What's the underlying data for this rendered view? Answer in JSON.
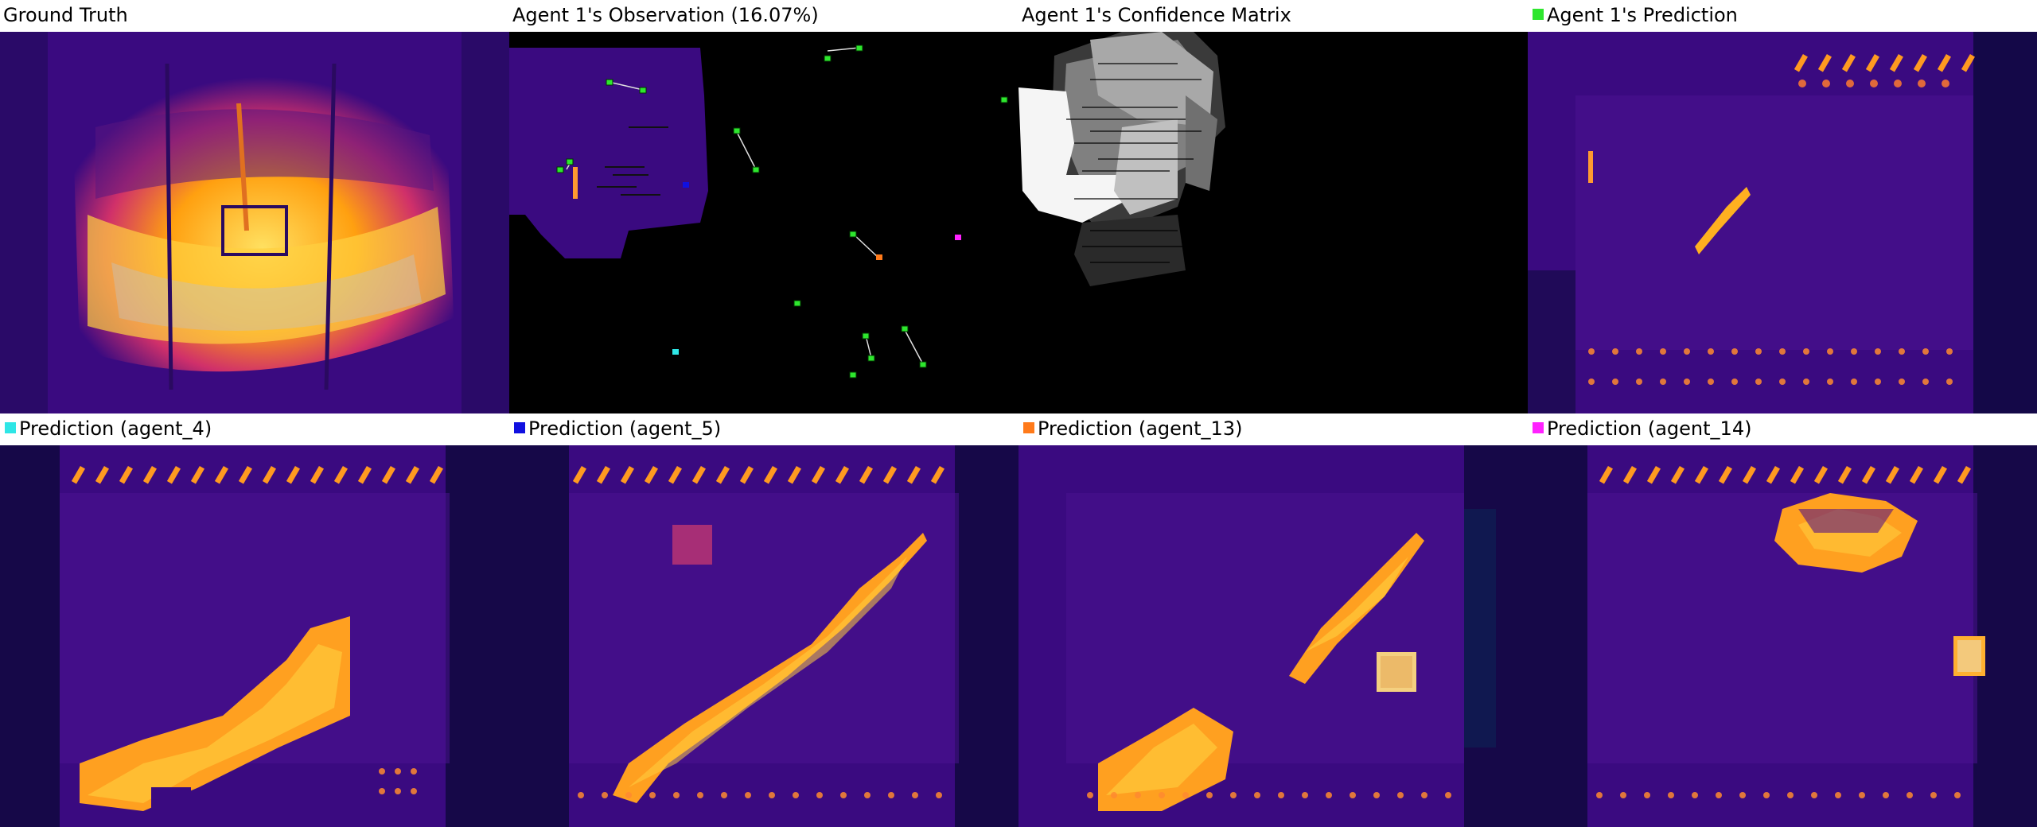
{
  "panels": [
    {
      "title": "Ground Truth",
      "marker": ""
    },
    {
      "title": "Agent 1's Observation (16.07%)",
      "marker": ""
    },
    {
      "title": "Agent 1's Confidence Matrix",
      "marker": ""
    },
    {
      "title": "Agent 1's Prediction",
      "marker": "#2ee62e"
    },
    {
      "title": "Prediction (agent_4)",
      "marker": "#2ee6e6"
    },
    {
      "title": "Prediction (agent_5)",
      "marker": "#1010e0"
    },
    {
      "title": "Prediction (agent_13)",
      "marker": "#ff7a1a"
    },
    {
      "title": "Prediction (agent_14)",
      "marker": "#ff22ff"
    }
  ],
  "colors": {
    "heat_bg": "#3a0a80",
    "heat_dark": "#1e0850",
    "heat_mid": "#c02a70",
    "heat_hot": "#ff9a10",
    "heat_max": "#ffe050",
    "agent_green": "#2ee62e"
  },
  "agents": {
    "self": "agent_1",
    "cyan": "agent_4",
    "blue": "agent_5",
    "orange": "agent_13",
    "magenta": "agent_14"
  }
}
